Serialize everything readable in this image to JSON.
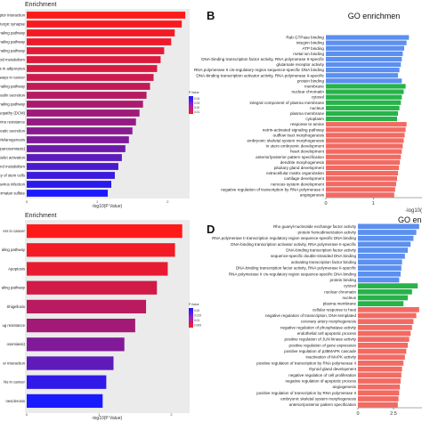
{
  "panels": {
    "b_label": "B",
    "d_label": "D"
  },
  "legend": {
    "title": "P.Value"
  },
  "chart_data": [
    {
      "type": "bar",
      "title": "Enrichment",
      "xlabel": "-log10(P Value)",
      "ylabel": "",
      "xticks": [
        "0",
        "1",
        "2"
      ],
      "xlim": [
        0,
        2.4
      ],
      "categories": [
        "Neuroactive ligand-receptor interaction",
        "Glutamatergic synapse",
        "Relaxin signaling pathway",
        "Phospholipase D signaling pathway",
        "MAPK signaling pathway",
        "Sphingolipid metabolism",
        "Regulation of lipolysis in adipocytes",
        "Pathways in cancer",
        "cAMP signaling pathway",
        "Insulin secretion",
        "GnRH signaling pathway",
        "Dilated cardiomyopathy (DCM)",
        "Endocrine resistance",
        "Pancreatic secretion",
        "Melanogenesis",
        "agas disease (American trypanosomiasis)",
        "Platelet activation",
        "Selenocompound metabolism",
        "ways regulating pluripotency of stem cells",
        "Human papillomavirus infection",
        "- chondroitin sulfate / dermatan sulfate"
      ],
      "values": [
        2.25,
        2.2,
        2.1,
        2.05,
        1.95,
        1.9,
        1.85,
        1.8,
        1.75,
        1.7,
        1.65,
        1.6,
        1.55,
        1.5,
        1.45,
        1.4,
        1.35,
        1.3,
        1.25,
        1.2,
        1.15
      ],
      "pvalues": [
        0.001,
        0.002,
        0.003,
        0.004,
        0.006,
        0.007,
        0.008,
        0.01,
        0.012,
        0.014,
        0.016,
        0.018,
        0.02,
        0.022,
        0.024,
        0.027,
        0.03,
        0.033,
        0.036,
        0.039,
        0.042
      ],
      "legend_ticks": [
        "0.04",
        "0.03",
        "0.02",
        "0.01"
      ]
    },
    {
      "type": "bar",
      "title": "Enrichment",
      "xlabel": "-log10(P Value)",
      "ylabel": "",
      "xticks": [
        "0",
        "1",
        "2"
      ],
      "xlim": [
        0,
        2.4
      ],
      "categories": [
        "ers in cancer",
        "aling pathway",
        "Apoptosis",
        "aling pathway",
        "Shigellosis",
        "ug resistance",
        "osomiasis)",
        "or interaction",
        "Ns in cancer",
        "nesclerosis"
      ],
      "values": [
        2.15,
        2.05,
        1.95,
        1.8,
        1.65,
        1.5,
        1.35,
        1.2,
        1.1,
        1.05
      ],
      "pvalues": [
        0.002,
        0.003,
        0.004,
        0.006,
        0.008,
        0.01,
        0.013,
        0.016,
        0.02,
        0.022
      ],
      "legend_ticks": [
        "0.02",
        "0.015",
        "0.01",
        "0.005"
      ]
    },
    {
      "type": "bar",
      "title": "GO enrichmen",
      "xlabel": "-log10(",
      "ylabel": "",
      "xticks": [
        "0",
        "1"
      ],
      "xlim": [
        0,
        1.8
      ],
      "categories": [
        "Rab GTPase binding",
        "integrin binding",
        "ATP binding",
        "metal ion binding",
        "DNA-binding transcription factor activity, RNA polymerase II-specific",
        "glutamate receptor activity",
        "RNA polymerase II cis-regulatory region sequence-specific DNA binding",
        "DNA-binding transcription activator activity, RNA polymerase II-specific",
        "protein binding",
        "membrane",
        "nuclear chromatin",
        "cytosol",
        "integral component of plasma membrane",
        "nucleus",
        "plasma membrane",
        "cytoplasm",
        "response to amine",
        "netrin-activated signaling pathway",
        "outflow tract morphogenesis",
        "embryonic skeletal system morphogenesis",
        "in utero embryonic development",
        "heart development",
        "anterior/posterior pattern specification",
        "dendrite morphogenesis",
        "pituitary gland development",
        "extracellular matrix organization",
        "cartilage development",
        "nervous system development",
        "negative regulation of transcription by RNA polymerase II",
        "angiogenesis"
      ],
      "values": [
        1.75,
        1.7,
        1.65,
        1.62,
        1.6,
        1.58,
        1.55,
        1.52,
        1.6,
        1.68,
        1.64,
        1.6,
        1.58,
        1.55,
        1.52,
        1.5,
        1.7,
        1.68,
        1.66,
        1.64,
        1.62,
        1.6,
        1.58,
        1.56,
        1.54,
        1.52,
        1.5,
        1.48,
        1.46,
        1.44
      ],
      "groups": [
        "MF",
        "MF",
        "MF",
        "MF",
        "MF",
        "MF",
        "MF",
        "MF",
        "MF",
        "CC",
        "CC",
        "CC",
        "CC",
        "CC",
        "CC",
        "CC",
        "BP",
        "BP",
        "BP",
        "BP",
        "BP",
        "BP",
        "BP",
        "BP",
        "BP",
        "BP",
        "BP",
        "BP",
        "BP",
        "BP"
      ],
      "group_colors": {
        "MF": "#5b8ff0",
        "CC": "#27b34a",
        "BP": "#f26a62"
      }
    },
    {
      "type": "bar",
      "title": "GO enri",
      "xlabel": "",
      "ylabel": "",
      "xticks": [
        "0",
        "2.5"
      ],
      "xlim": [
        0,
        5
      ],
      "categories": [
        "Rho guanyl-nucleotide exchange factor activity",
        "protein homodimerization activity",
        "RNA polymerase II transcription regulatory region sequence-specific DNA binding",
        "DNA-binding transcription activator activity, RNA polymerase II-specific",
        "DNA-binding transcription factor activity",
        "sequence-specific double-stranded DNA binding",
        "activating transcription factor binding",
        "DNA-binding transcription factor activity, RNA polymerase II-specific",
        "RNA polymerase II cis-regulatory region sequence-specific DNA binding",
        "protein binding",
        "cytosol",
        "nuclear chromatin",
        "nucleus",
        "plasma membrane",
        "cellular response to heat",
        "negative regulation of transcription, DNA-templated",
        "coronary artery morphogenesis",
        "negative regulation of phosphatase activity",
        "endothelial cell apoptotic process",
        "positive regulation of JUN kinase activity",
        "positive regulation of gene expression",
        "positive regulation of p38MAPK cascade",
        "inactivation of MAPK activity",
        "positive regulation of transcription by RNA polymerase II",
        "thyroid gland development",
        "negative regulation of cell proliferation",
        "negative regulation of apoptotic process",
        "angiogenesis",
        "positive regulation of transcription by RNA polymerase II",
        "embryonic skeletal system morphogenesis",
        "anterior/posterior pattern specification"
      ],
      "values": [
        4.3,
        4.1,
        3.9,
        3.7,
        3.5,
        3.3,
        3.1,
        3.05,
        3.0,
        2.9,
        4.2,
        3.8,
        3.5,
        3.2,
        4.3,
        4.1,
        3.9,
        3.8,
        3.7,
        3.6,
        3.5,
        3.4,
        3.3,
        3.2,
        3.1,
        3.05,
        3.0,
        2.95,
        2.9,
        2.85,
        2.8
      ],
      "groups": [
        "MF",
        "MF",
        "MF",
        "MF",
        "MF",
        "MF",
        "MF",
        "MF",
        "MF",
        "MF",
        "CC",
        "CC",
        "CC",
        "CC",
        "BP",
        "BP",
        "BP",
        "BP",
        "BP",
        "BP",
        "BP",
        "BP",
        "BP",
        "BP",
        "BP",
        "BP",
        "BP",
        "BP",
        "BP",
        "BP",
        "BP"
      ],
      "group_colors": {
        "MF": "#5b8ff0",
        "CC": "#27b34a",
        "BP": "#f26a62"
      }
    }
  ]
}
